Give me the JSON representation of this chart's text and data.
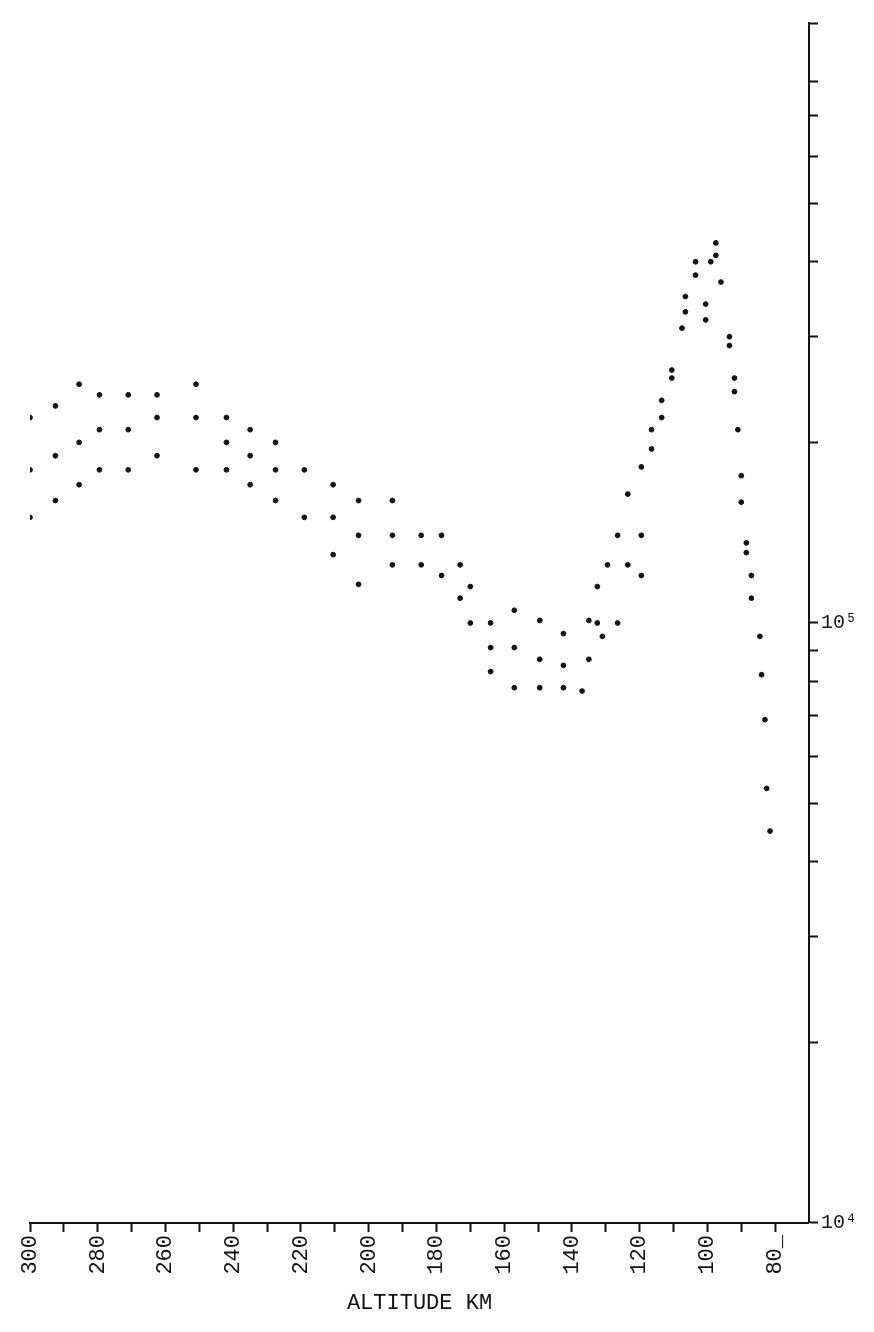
{
  "chart_data": {
    "type": "scatter",
    "xlabel": "ALTITUDE KM",
    "log": "y",
    "grid": false,
    "legend": false,
    "marker": "circle",
    "xlim": [
      300,
      70
    ],
    "xticks": [
      300,
      {
        "value": 290,
        "label": null
      },
      280,
      {
        "value": 270,
        "label": null
      },
      260,
      {
        "value": 250,
        "label": null
      },
      240,
      {
        "value": 230,
        "label": null
      },
      220,
      {
        "value": 210,
        "label": null
      },
      200,
      {
        "value": 190,
        "label": null
      },
      180,
      {
        "value": 170,
        "label": null
      },
      160,
      {
        "value": 150,
        "label": null
      },
      140,
      {
        "value": 130,
        "label": null
      },
      120,
      {
        "value": 110,
        "label": null
      },
      100,
      {
        "value": 90,
        "label": null
      },
      {
        "value": 80,
        "label": "80_"
      }
    ],
    "ylim": [
      10000,
      1000000
    ],
    "yticks": [
      {
        "value": 10000,
        "label": "10⁴"
      },
      {
        "value": 20000,
        "label": null
      },
      {
        "value": 30000,
        "label": null
      },
      {
        "value": 40000,
        "label": null
      },
      {
        "value": 50000,
        "label": null
      },
      {
        "value": 60000,
        "label": null
      },
      {
        "value": 70000,
        "label": null
      },
      {
        "value": 80000,
        "label": null
      },
      {
        "value": 90000,
        "label": null
      },
      {
        "value": 100000,
        "label": "10⁵"
      },
      {
        "value": 200000,
        "label": null
      },
      {
        "value": 300000,
        "label": null
      },
      {
        "value": 400000,
        "label": null
      },
      {
        "value": 500000,
        "label": null
      },
      {
        "value": 600000,
        "label": null
      },
      {
        "value": 700000,
        "label": null
      },
      {
        "value": 800000,
        "label": null
      },
      {
        "value": 1000000,
        "label": null
      }
    ],
    "series": [
      {
        "color": "#111111",
        "x": [
          300,
          300,
          300,
          292.5,
          292.5,
          292.5,
          285.5,
          285.5,
          285.5,
          279.5,
          279.5,
          279.5,
          271,
          271,
          271,
          262.5,
          262.5,
          262.5,
          251,
          251,
          251,
          242,
          242,
          242,
          235,
          235,
          235,
          227.5,
          227.5,
          227.5,
          219,
          219,
          210.5,
          210.5,
          210.5,
          203,
          203,
          203,
          193,
          193,
          193,
          184.5,
          184.5,
          178.5,
          178.5,
          173,
          173,
          170,
          170,
          164,
          164,
          164,
          157,
          157,
          157,
          149.5,
          149.5,
          149.5,
          142.5,
          142.5,
          142.5,
          135,
          135,
          137,
          132.5,
          132.5,
          131,
          129.5,
          126.5,
          126.5,
          123.5,
          123.5,
          119.5,
          119.5,
          119.5,
          116.5,
          116.5,
          113.5,
          113.5,
          110.5,
          110.5,
          107.5,
          106.5,
          106.5,
          103.5,
          103.5,
          100.5,
          100.5,
          99,
          97.5,
          97.5,
          96,
          93.5,
          93.5,
          92,
          92,
          91,
          90,
          90,
          88.5,
          88.5,
          87,
          87,
          84.5,
          84,
          83,
          82.5,
          81.5
        ],
        "values": [
          220000,
          180000,
          150000,
          230000,
          190000,
          160000,
          250000,
          200000,
          170000,
          240000,
          210000,
          180000,
          240000,
          210000,
          180000,
          240000,
          220000,
          190000,
          250000,
          220000,
          180000,
          220000,
          200000,
          180000,
          210000,
          190000,
          170000,
          200000,
          180000,
          160000,
          180000,
          150000,
          170000,
          150000,
          130000,
          160000,
          140000,
          116000,
          160000,
          140000,
          125000,
          140000,
          125000,
          140000,
          120000,
          125000,
          110000,
          115000,
          100000,
          100000,
          91000,
          83000,
          105000,
          91000,
          78000,
          101000,
          87000,
          78000,
          96000,
          85000,
          78000,
          101000,
          87000,
          77000,
          115000,
          100000,
          95000,
          125000,
          140000,
          100000,
          164000,
          125000,
          182000,
          140000,
          120000,
          210000,
          195000,
          235000,
          220000,
          264000,
          256000,
          310000,
          350000,
          330000,
          400000,
          380000,
          340000,
          320000,
          400000,
          430000,
          410000,
          370000,
          300000,
          290000,
          256000,
          243000,
          210000,
          176000,
          159000,
          136000,
          131000,
          120000,
          110000,
          95000,
          82000,
          69000,
          53000,
          45000
        ]
      }
    ]
  }
}
